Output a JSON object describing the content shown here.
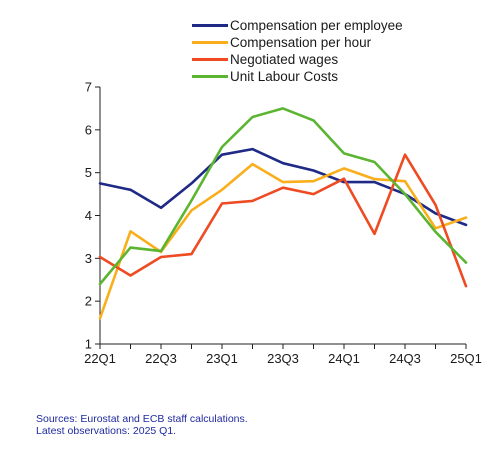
{
  "chart_data": {
    "type": "line",
    "title": "",
    "xlabel": "",
    "ylabel": "",
    "x": [
      "22Q1",
      "22Q2",
      "22Q3",
      "22Q4",
      "23Q1",
      "23Q2",
      "23Q3",
      "23Q4",
      "24Q1",
      "24Q2",
      "24Q3",
      "24Q4",
      "25Q1"
    ],
    "x_tick_labels": [
      "22Q1",
      "22Q3",
      "23Q1",
      "23Q3",
      "24Q1",
      "24Q3",
      "25Q1"
    ],
    "ylim": [
      1,
      7
    ],
    "y_ticks": [
      1,
      2,
      3,
      4,
      5,
      6,
      7
    ],
    "legend_position": "top-center",
    "grid": false,
    "series": [
      {
        "name": "Compensation per employee",
        "color": "#1f2a87",
        "values": [
          4.75,
          4.6,
          4.18,
          4.75,
          5.42,
          5.55,
          5.22,
          5.05,
          4.78,
          4.78,
          4.5,
          4.05,
          3.78
        ]
      },
      {
        "name": "Compensation per hour",
        "color": "#f9ae1b",
        "values": [
          1.6,
          3.63,
          3.15,
          4.12,
          4.6,
          5.2,
          4.78,
          4.8,
          5.1,
          4.85,
          4.8,
          3.7,
          3.95
        ]
      },
      {
        "name": "Negotiated wages",
        "color": "#ef4b23",
        "values": [
          3.03,
          2.6,
          3.03,
          3.1,
          4.28,
          4.34,
          4.65,
          4.5,
          4.86,
          3.57,
          5.42,
          4.25,
          2.35
        ]
      },
      {
        "name": "Unit Labour Costs",
        "color": "#5bb531",
        "values": [
          2.4,
          3.25,
          3.17,
          4.35,
          5.6,
          6.3,
          6.5,
          6.22,
          5.45,
          5.25,
          4.5,
          3.62,
          2.9
        ]
      }
    ]
  },
  "footer": {
    "source_line": "Sources: Eurostat and ECB staff calculations.",
    "latest_line": "Latest observations: 2025 Q1."
  }
}
